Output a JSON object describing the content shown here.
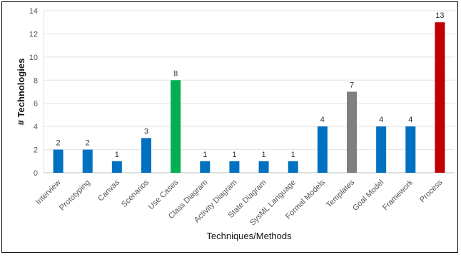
{
  "chart_data": {
    "type": "bar",
    "categories": [
      "Interview",
      "Prototyping",
      "Canvas",
      "Scenarios",
      "Use Cases",
      "Class Diagram",
      "Activity Diagram",
      "State Diagram",
      "SysML Language",
      "Formal Models",
      "Templates",
      "Goal Model",
      "Framework",
      "Process"
    ],
    "values": [
      2,
      2,
      1,
      3,
      8,
      1,
      1,
      1,
      1,
      4,
      7,
      4,
      4,
      13
    ],
    "colors": [
      "#0070c0",
      "#0070c0",
      "#0070c0",
      "#0070c0",
      "#00b050",
      "#0070c0",
      "#0070c0",
      "#0070c0",
      "#0070c0",
      "#0070c0",
      "#7f7f7f",
      "#0070c0",
      "#0070c0",
      "#c00000"
    ],
    "title": "",
    "xlabel": "Techniques/Methods",
    "ylabel": "# Technologies",
    "ylim": [
      0,
      14
    ],
    "yticks": [
      0,
      2,
      4,
      6,
      8,
      10,
      12,
      14
    ],
    "grid": true,
    "legend": "none",
    "data_labels": true
  }
}
